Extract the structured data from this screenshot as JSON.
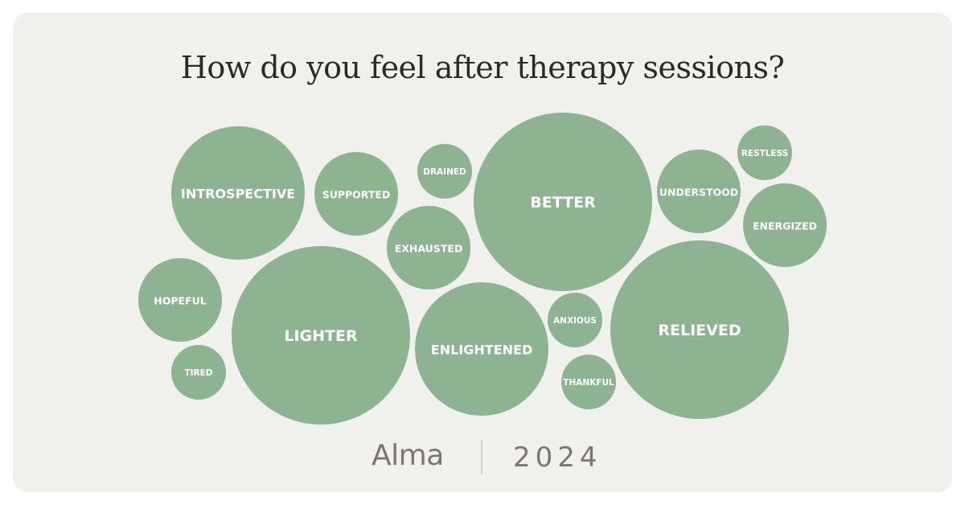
{
  "title": "How do you feel after therapy sessions?",
  "footer": {
    "brand": "Alma",
    "year": "2024"
  },
  "colors": {
    "background": "#f0f1ed",
    "bubble": "#8db390",
    "label": "#ffffff",
    "title": "#2a2a28",
    "footer_text": "#7d756e"
  },
  "chart_data": {
    "type": "bubble",
    "title": "How do you feel after therapy sessions?",
    "items": [
      {
        "label": "BETTER"
      },
      {
        "label": "RELIEVED"
      },
      {
        "label": "LIGHTER"
      },
      {
        "label": "INTROSPECTIVE"
      },
      {
        "label": "ENLIGHTENED"
      },
      {
        "label": "SUPPORTED"
      },
      {
        "label": "UNDERSTOOD"
      },
      {
        "label": "EXHAUSTED"
      },
      {
        "label": "ENERGIZED"
      },
      {
        "label": "HOPEFUL"
      },
      {
        "label": "DRAINED"
      },
      {
        "label": "RESTLESS"
      },
      {
        "label": "ANXIOUS"
      },
      {
        "label": "THANKFUL"
      },
      {
        "label": "TIRED"
      }
    ]
  }
}
